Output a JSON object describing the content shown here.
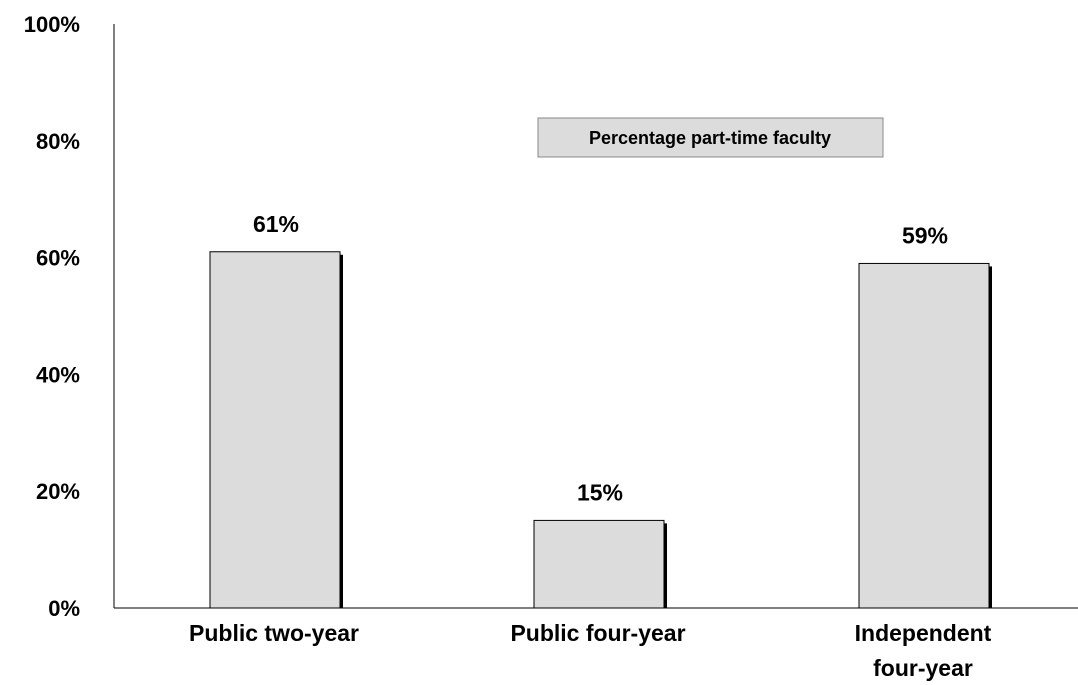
{
  "chart_data": {
    "type": "bar",
    "categories": [
      "Public two-year",
      "Public four-year",
      "Independent four-year"
    ],
    "category_lines": [
      [
        "Public two-year"
      ],
      [
        "Public four-year"
      ],
      [
        "Independent",
        "four-year"
      ]
    ],
    "series": [
      {
        "name": "Percentage part-time faculty",
        "values": [
          61,
          15,
          59
        ]
      }
    ],
    "data_labels": [
      "61%",
      "15%",
      "59%"
    ],
    "yticks": [
      0,
      20,
      40,
      60,
      80,
      100
    ],
    "ytick_labels": [
      "0%",
      "20%",
      "40%",
      "60%",
      "80%",
      "100%"
    ],
    "ylim": [
      0,
      100
    ],
    "title": "",
    "xlabel": "",
    "ylabel": "",
    "grid": false,
    "legend_position": "top-center",
    "colors": {
      "bar_fill": "#dcdcdc",
      "bar_stroke": "#000000",
      "bar_shadow": "#000000",
      "legend_fill": "#dcdcdc"
    }
  }
}
